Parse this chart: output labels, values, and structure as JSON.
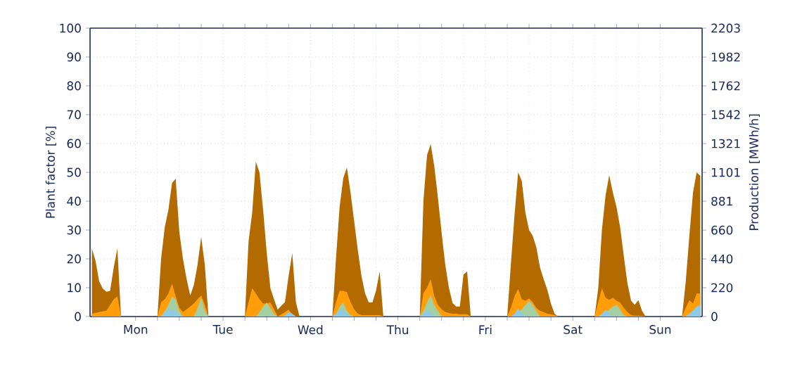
{
  "chart_data": {
    "type": "area",
    "ylabel": "Plant factor [%]",
    "y2label": "Production [MWh/h]",
    "ylim": [
      0,
      100
    ],
    "y2lim": [
      0,
      2203
    ],
    "yticks": [
      0,
      10,
      20,
      30,
      40,
      50,
      60,
      70,
      80,
      90,
      100
    ],
    "y2ticks": [
      0,
      220,
      440,
      660,
      881,
      1101,
      1321,
      1542,
      1762,
      1982,
      2203
    ],
    "categories": [
      null,
      null,
      null,
      null,
      null,
      null,
      null,
      null,
      null,
      null,
      null,
      null,
      "Mon",
      null,
      null,
      null,
      null,
      null,
      null,
      null,
      null,
      null,
      null,
      null,
      null,
      null,
      null,
      null,
      null,
      null,
      null,
      null,
      null,
      null,
      null,
      null,
      "Tue",
      null,
      null,
      null,
      null,
      null,
      null,
      null,
      null,
      null,
      null,
      null,
      null,
      null,
      null,
      null,
      null,
      null,
      null,
      null,
      null,
      null,
      null,
      null,
      "Wed",
      null,
      null,
      null,
      null,
      null,
      null,
      null,
      null,
      null,
      null,
      null,
      null,
      null,
      null,
      null,
      null,
      null,
      null,
      null,
      null,
      null,
      null,
      null,
      "Thu",
      null,
      null,
      null,
      null,
      null,
      null,
      null,
      null,
      null,
      null,
      null,
      null,
      null,
      null,
      null,
      null,
      null,
      null,
      null,
      null,
      null,
      null,
      null,
      "Fri",
      null,
      null,
      null,
      null,
      null,
      null,
      null,
      null,
      null,
      null,
      null,
      null,
      null,
      null,
      null,
      null,
      null,
      null,
      null,
      null,
      null,
      null,
      null,
      "Sat",
      null,
      null,
      null,
      null,
      null,
      null,
      null,
      null,
      null,
      null,
      null,
      null,
      null,
      null,
      null,
      null,
      null,
      null,
      null,
      null,
      null,
      null,
      null,
      "Sun",
      null,
      null,
      null,
      null,
      null,
      null,
      null,
      null,
      null,
      null,
      null
    ],
    "grid": true,
    "marker": "none",
    "series": [
      {
        "color": "#b36b00",
        "values": [
          23.6,
          19.3,
          12.2,
          9.7,
          8.6,
          8.9,
          17,
          23.6,
          0,
          0,
          0,
          0,
          0,
          0,
          0,
          0,
          0,
          0,
          0,
          20,
          30.9,
          37,
          46.3,
          47.8,
          29.3,
          20,
          13,
          7.3,
          11,
          17.9,
          27.6,
          17.9,
          0,
          0,
          0,
          0,
          0,
          0,
          0,
          0,
          0,
          0,
          0,
          26,
          36,
          53.7,
          50,
          37,
          22,
          9.8,
          6,
          2.4,
          3.8,
          5,
          14,
          22,
          5,
          0,
          0,
          0,
          0,
          0,
          0,
          0,
          0,
          0,
          0,
          20,
          38,
          48,
          51.7,
          43,
          33,
          23,
          14,
          8,
          4.9,
          4.9,
          9,
          15.6,
          0,
          0,
          0,
          0,
          0,
          0,
          0,
          0,
          0,
          0,
          0,
          40,
          56,
          59.8,
          52,
          41,
          29,
          17.9,
          10,
          4.7,
          3.5,
          3.5,
          14.6,
          15.6,
          0,
          0,
          0,
          0,
          0,
          0,
          0,
          0,
          0,
          0,
          0,
          18,
          35,
          50,
          47,
          36,
          30,
          28,
          24,
          17,
          13,
          9.3,
          4.5,
          1,
          0,
          0,
          0,
          0,
          0,
          0,
          0,
          0,
          0,
          0,
          0,
          10,
          30,
          42,
          49,
          43,
          38,
          31,
          21,
          11.5,
          5.5,
          4.1,
          5.7,
          2,
          0,
          0,
          0,
          0,
          0,
          0,
          0,
          0,
          0,
          0,
          0,
          12,
          28,
          43,
          50,
          48.8
        ]
      },
      {
        "color": "#ff9d0a",
        "values": [
          1,
          1.3,
          1.5,
          1.8,
          2,
          4,
          6,
          7,
          0,
          0,
          0,
          0,
          0,
          0,
          0,
          0,
          0,
          0,
          0,
          5,
          6,
          8,
          11.4,
          7,
          3,
          1.6,
          2.5,
          3.5,
          4.5,
          6,
          7.3,
          4,
          0,
          0,
          0,
          0,
          0,
          0,
          0,
          0,
          0,
          0,
          0,
          4.9,
          9.8,
          8,
          6,
          4.5,
          4.5,
          4.9,
          2.5,
          0,
          0.8,
          1.5,
          2.4,
          0.8,
          0,
          0,
          0,
          0,
          0,
          0,
          0,
          0,
          0,
          0,
          0,
          4.9,
          8.9,
          8.9,
          8.5,
          5,
          2.5,
          1,
          0.5,
          0.5,
          0.5,
          0.5,
          0.5,
          0.5,
          0,
          0,
          0,
          0,
          0,
          0,
          0,
          0,
          0,
          0,
          0,
          8.1,
          10,
          13,
          7,
          4,
          2.5,
          1.6,
          1.2,
          1,
          1,
          0.8,
          0.8,
          0.8,
          0,
          0,
          0,
          0,
          0,
          0,
          0,
          0,
          0,
          0,
          0,
          3,
          7,
          9.6,
          6,
          5.5,
          6.3,
          5,
          3,
          2,
          1.5,
          1,
          0.8,
          0.5,
          0,
          0,
          0,
          0,
          0,
          0,
          0,
          0,
          0,
          0,
          0,
          5,
          9.8,
          6.5,
          5.8,
          6.5,
          5.5,
          4.9,
          3,
          1.6,
          0.5,
          0.3,
          0.3,
          0.2,
          0,
          0,
          0,
          0,
          0,
          0,
          0,
          0,
          0,
          0,
          0,
          3,
          5.7,
          4.5,
          8,
          8
        ]
      },
      {
        "color": "#a3cfa3",
        "values": [
          0,
          0,
          0,
          0,
          0,
          0,
          0,
          0,
          0,
          0,
          0,
          0,
          0,
          0,
          0,
          0,
          0,
          0,
          0,
          0,
          2,
          4,
          7,
          6,
          2,
          0,
          0,
          0,
          0,
          3,
          6.5,
          2,
          0,
          0,
          0,
          0,
          0,
          0,
          0,
          0,
          0,
          0,
          0,
          0,
          0,
          0,
          1.5,
          3.5,
          4.9,
          3,
          1,
          0,
          0,
          0,
          0,
          0,
          0,
          0,
          0,
          0,
          0,
          0,
          0,
          0,
          0,
          0,
          0,
          1,
          3.5,
          4.9,
          2,
          0.5,
          0,
          0,
          0,
          0,
          0,
          0,
          0,
          0,
          0,
          0,
          0,
          0,
          0,
          0,
          0,
          0,
          0,
          0,
          0,
          2,
          5,
          7.3,
          4,
          2,
          0,
          0,
          0,
          0,
          0,
          0,
          0,
          0,
          0,
          0,
          0,
          0,
          0,
          0,
          0,
          0,
          0,
          0,
          0,
          0,
          0.5,
          1.5,
          2.5,
          4,
          5.5,
          4,
          2,
          0,
          0,
          0,
          0,
          0,
          0,
          0,
          0,
          0,
          0,
          0,
          0,
          0,
          0,
          0,
          0,
          0,
          0.5,
          1.5,
          2.5,
          3.5,
          4.1,
          2.5,
          0.5,
          0,
          0,
          0,
          0,
          0,
          0,
          0,
          0,
          0,
          0,
          0,
          0,
          0,
          0,
          0,
          0,
          0,
          1,
          2,
          3,
          3
        ]
      },
      {
        "color": "#8ecae6",
        "values": [
          0,
          0,
          0,
          0,
          0,
          0,
          0,
          0,
          0,
          0,
          0,
          0,
          0,
          0,
          0,
          0,
          0,
          0,
          0,
          0,
          1.5,
          2.4,
          2.4,
          2,
          0.5,
          0,
          0,
          0,
          0,
          0,
          0,
          0,
          0,
          0,
          0,
          0,
          0,
          0,
          0,
          0,
          0,
          0,
          0,
          0,
          0,
          0,
          0,
          0,
          0,
          0,
          0,
          0,
          0,
          0.5,
          1.6,
          1,
          0,
          0,
          0,
          0,
          0,
          0,
          0,
          0,
          0,
          0,
          0,
          1,
          2,
          2.4,
          1,
          0,
          0,
          0,
          0,
          0,
          0,
          0,
          0,
          0,
          0,
          0,
          0,
          0,
          0,
          0,
          0,
          0,
          0,
          0,
          0,
          1,
          2.4,
          1.5,
          0,
          0,
          0,
          0,
          0,
          0,
          0,
          0,
          0,
          0,
          0,
          0,
          0,
          0,
          0,
          0,
          0,
          0,
          0,
          0,
          0,
          0,
          1,
          2.8,
          1,
          0,
          0,
          0,
          0,
          0,
          0,
          0,
          0,
          0,
          0,
          0,
          0,
          0,
          0,
          0,
          0,
          0,
          0,
          0,
          0,
          0,
          1,
          2.4,
          1,
          0,
          0,
          0,
          0,
          0,
          0,
          0,
          0,
          0,
          0,
          0,
          0,
          0,
          0,
          0,
          0,
          0,
          0,
          0,
          0,
          0,
          1,
          2,
          3.5,
          4
        ]
      }
    ]
  }
}
